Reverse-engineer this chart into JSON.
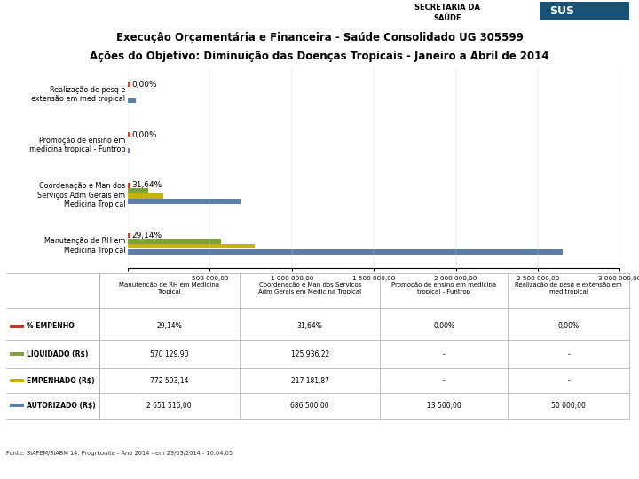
{
  "title_line1": "Execução Orçamentária e Financeira - Saúde Consolidado UG 305599",
  "title_line2": "Ações do Objetivo: Diminuição das Doenças Tropicais - Janeiro a Abril de 2014",
  "categories": [
    "Manutenção de RH em\nMedicina Tropical",
    "Coordenação e Man dos\nServiços Adm Gerais em\nMedicina Tropical",
    "Promoção de ensino em\nmedicina tropical - Funtrop",
    "Realização de pesq e\nextensão em med tropical"
  ],
  "pct_empenho": [
    29.14,
    31.64,
    0.0,
    0.0
  ],
  "liquidado": [
    570129.9,
    125936.22,
    null,
    null
  ],
  "empenhado": [
    772593.14,
    217181.87,
    null,
    null
  ],
  "autorizado": [
    2651516.0,
    686500.0,
    13500.0,
    50000.0
  ],
  "color_empenho": "#c0392b",
  "color_liquidado": "#7f9f3f",
  "color_empenhado": "#c8b400",
  "color_autorizado": "#5b7fa6",
  "xlim": [
    0,
    3000000
  ],
  "xticks": [
    0,
    500000,
    1000000,
    1500000,
    2000000,
    2500000,
    3000000
  ],
  "xtick_labels": [
    "-",
    "500 000,00",
    "1 000 000,00",
    "1 500 000,00",
    "2 000 000,00",
    "2 500 000,00",
    "3 000 000,00"
  ],
  "footer": "Fonte: SIAFEM/SIABM 14. Progrkonite - Ano 2014 - em 29/03/2014 - 10.04.05",
  "table_rows": [
    "% EMPENHO",
    "LIQUIDADO (R$)",
    "EMPENHADO (R$)",
    "AUTORIZADO (R$)"
  ],
  "table_col_headers": [
    "Manutenção de RH em Medicina\nTropical",
    "Coordenação e Man dos Serviços\nAdm Gerais em Medicina Tropical",
    "Promoção de ensino em medicina\ntropical - Funtrop",
    "Realização de pesq e extensão em\nmed tropical"
  ],
  "table_data": [
    [
      "29,14%",
      "31,64%",
      "0,00%",
      "0,00%"
    ],
    [
      "570 129,90",
      "125 936,22",
      "-",
      "-"
    ],
    [
      "772 593,14",
      "217 181,87",
      "-",
      "-"
    ],
    [
      "2 651 516,00",
      "686 500,00",
      "13 500,00",
      "50 000,00"
    ]
  ],
  "background_color": "#ffffff"
}
